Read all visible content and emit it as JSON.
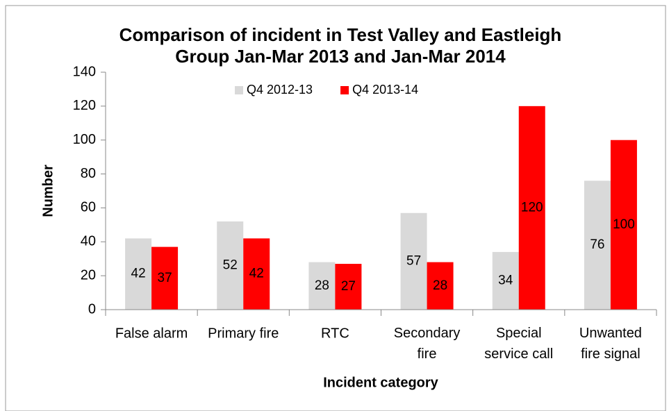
{
  "chart_data": {
    "type": "bar",
    "title": [
      "Comparison of incident in Test Valley and Eastleigh",
      "Group Jan-Mar 2013 and Jan-Mar 2014"
    ],
    "x_label": "Incident category",
    "y_label": "Number",
    "categories": [
      "False alarm",
      "Primary fire",
      "RTC",
      "Secondary fire",
      "Special service call",
      "Unwanted fire signal"
    ],
    "series": [
      {
        "name": "Q4 2012-13",
        "color": "#d9d9d9",
        "values": [
          42,
          52,
          28,
          57,
          34,
          76
        ]
      },
      {
        "name": "Q4 2013-14",
        "color": "#ff0000",
        "values": [
          37,
          42,
          27,
          28,
          120,
          100
        ]
      }
    ],
    "ylim": [
      0,
      140
    ],
    "yticks": [
      0,
      20,
      40,
      60,
      80,
      100,
      120,
      140
    ],
    "legend": "top",
    "grid": false
  }
}
